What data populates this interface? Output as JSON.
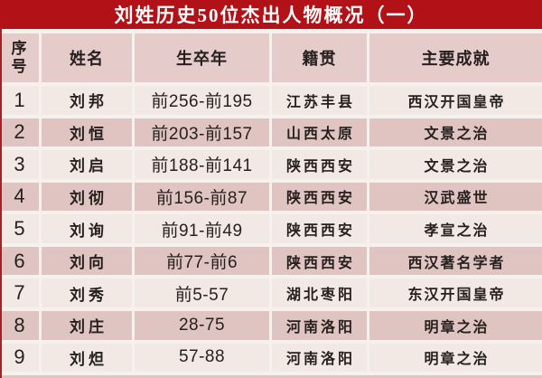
{
  "title": "刘姓历史50位杰出人物概况（一）",
  "table": {
    "columns": [
      "序号",
      "姓名",
      "生卒年",
      "籍贯",
      "主要成就"
    ],
    "rows": [
      [
        "1",
        "刘邦",
        "前256-前195",
        "江苏丰县",
        "西汉开国皇帝"
      ],
      [
        "2",
        "刘恒",
        "前203-前157",
        "山西太原",
        "文景之治"
      ],
      [
        "3",
        "刘启",
        "前188-前141",
        "陕西西安",
        "文景之治"
      ],
      [
        "4",
        "刘彻",
        "前156-前87",
        "陕西西安",
        "汉武盛世"
      ],
      [
        "5",
        "刘询",
        "前91-前49",
        "陕西西安",
        "孝宣之治"
      ],
      [
        "6",
        "刘向",
        "前77-前6",
        "陕西西安",
        "西汉著名学者"
      ],
      [
        "7",
        "刘秀",
        "前5-57",
        "湖北枣阳",
        "东汉开国皇帝"
      ],
      [
        "8",
        "刘庄",
        "28-75",
        "河南洛阳",
        "明章之治"
      ],
      [
        "9",
        "刘炟",
        "57-88",
        "河南洛阳",
        "明章之治"
      ]
    ]
  },
  "colors": {
    "banner": "#b21117",
    "header_bg": "#e5cbc9",
    "row_light": "#f3e9e4",
    "row_pink": "#dfc4c1",
    "divider": "#f7f1ed",
    "text": "#26201e",
    "title_text": "#ffffff",
    "left_edge": "#a62125"
  }
}
